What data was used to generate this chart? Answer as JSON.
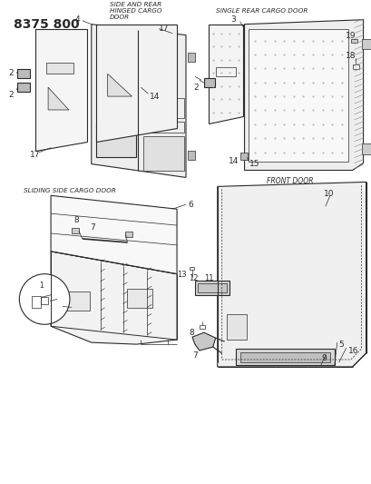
{
  "title": "8375 800",
  "bg_color": "#ffffff",
  "lc": "#2a2a2a",
  "title_fontsize": 10,
  "lbl_fs": 5.5,
  "num_fs": 6.5,
  "sections": {
    "sliding_label": "SLIDING SIDE CARGO DOOR",
    "front_label": "FRONT DOOR",
    "side_rear_label": "SIDE AND REAR\nHINGED CARGO\nDOOR",
    "single_rear_label": "SINGLE REAR CARGO DOOR"
  }
}
